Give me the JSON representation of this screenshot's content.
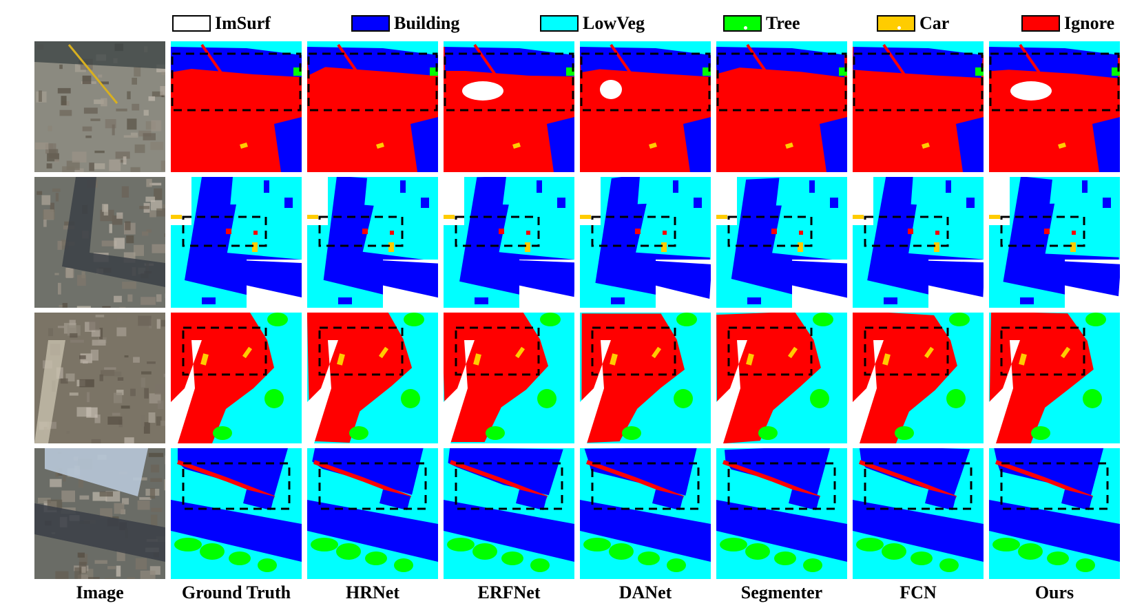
{
  "legend": [
    {
      "label": "ImSurf",
      "color": "#ffffff",
      "dot": false
    },
    {
      "label": "Building",
      "color": "#0000ff",
      "dot": false
    },
    {
      "label": "LowVeg",
      "color": "#00ffff",
      "dot": false
    },
    {
      "label": "Tree",
      "color": "#00ff00",
      "dot": true
    },
    {
      "label": "Car",
      "color": "#ffcc00",
      "dot": true
    },
    {
      "label": "Ignore",
      "color": "#ff0000",
      "dot": false
    }
  ],
  "columns": [
    "Image",
    "Ground Truth",
    "HRNet",
    "ERFNet",
    "DANet",
    "Segmenter",
    "FCN",
    "Ours"
  ],
  "rows": 4,
  "colors": {
    "imsurf": "#ffffff",
    "building": "#0000ff",
    "lowveg": "#00ffff",
    "tree": "#00ff00",
    "car": "#ffcc00",
    "ignore": "#ff0000"
  }
}
